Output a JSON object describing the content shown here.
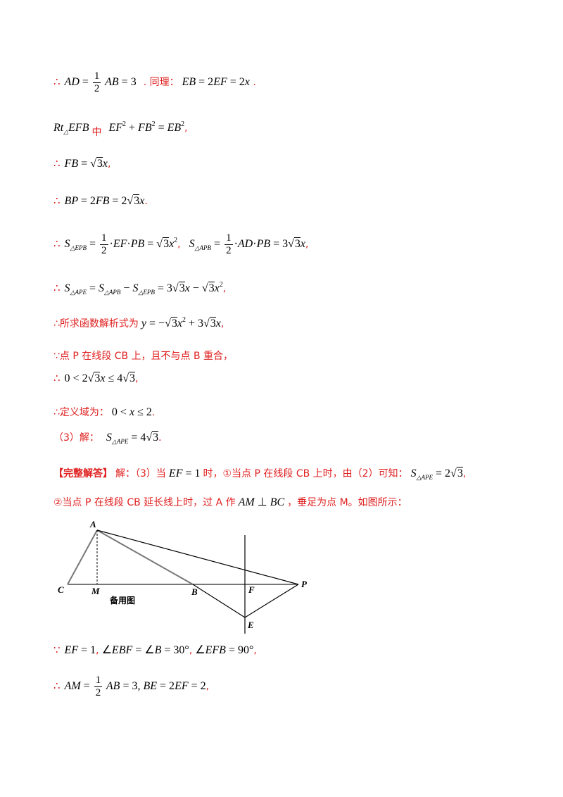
{
  "therefore": "∴",
  "because": "∵",
  "row1": {
    "tongli": "同理："
  },
  "row2": {
    "rt": "Rt",
    "zhong": "中"
  },
  "row7": {
    "label": "∴所求函数解析式为"
  },
  "row8": {
    "text": "∵点 P 在线段 CB 上，且不与点 B 重合，"
  },
  "row10": {
    "label": "∴定义域为："
  },
  "row11": {
    "label": "（3）解："
  },
  "row12": {
    "tag": "【完整解答】",
    "part1": "解：（3）当",
    "part2": "时，①当点 P 在线段 CB 上时，由（2）可知："
  },
  "row13": {
    "part1": "②当点 P 在线段 CB 延长线上时，过 A 作",
    "part2": "，垂足为点 M。如图所示："
  },
  "figure": {
    "points": {
      "A": "A",
      "C": "C",
      "M": "M",
      "B": "B",
      "F": "F",
      "P": "P",
      "E": "E"
    },
    "caption": "备用图"
  }
}
